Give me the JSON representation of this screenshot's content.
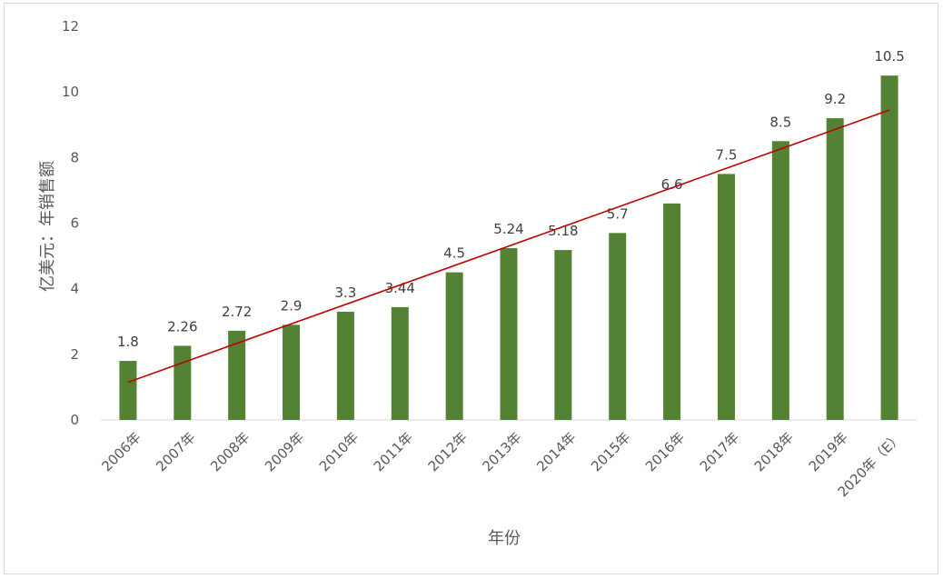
{
  "chart_data": {
    "type": "bar",
    "categories": [
      "2006年",
      "2007年",
      "2008年",
      "2009年",
      "2010年",
      "2011年",
      "2012年",
      "2013年",
      "2014年",
      "2015年",
      "2016年",
      "2017年",
      "2018年",
      "2019年",
      "2020年（E）"
    ],
    "values": [
      1.8,
      2.26,
      2.72,
      2.9,
      3.3,
      3.44,
      4.5,
      5.24,
      5.18,
      5.7,
      6.6,
      7.5,
      8.5,
      9.2,
      10.5
    ],
    "data_labels": [
      "1.8",
      "2.26",
      "2.72",
      "2.9",
      "3.3",
      "3.44",
      "4.5",
      "5.24",
      "5.18",
      "5.7",
      "6.6",
      "7.5",
      "8.5",
      "9.2",
      "10.5"
    ],
    "title": "",
    "xlabel": "年份",
    "ylabel": "亿美元：年销售额",
    "ylim": [
      0,
      12
    ],
    "yticks": [
      0,
      2,
      4,
      6,
      8,
      10,
      12
    ],
    "ytick_labels": [
      "0",
      "2",
      "4",
      "6",
      "8",
      "10",
      "12"
    ],
    "trendline": {
      "type": "linear",
      "start_value": 1.15,
      "end_value": 9.45
    },
    "grid": false,
    "legend": "none",
    "colors": {
      "bar": "#548235",
      "trendline": "#c00000",
      "axis": "#d9d9d9",
      "text": "#595959"
    }
  }
}
